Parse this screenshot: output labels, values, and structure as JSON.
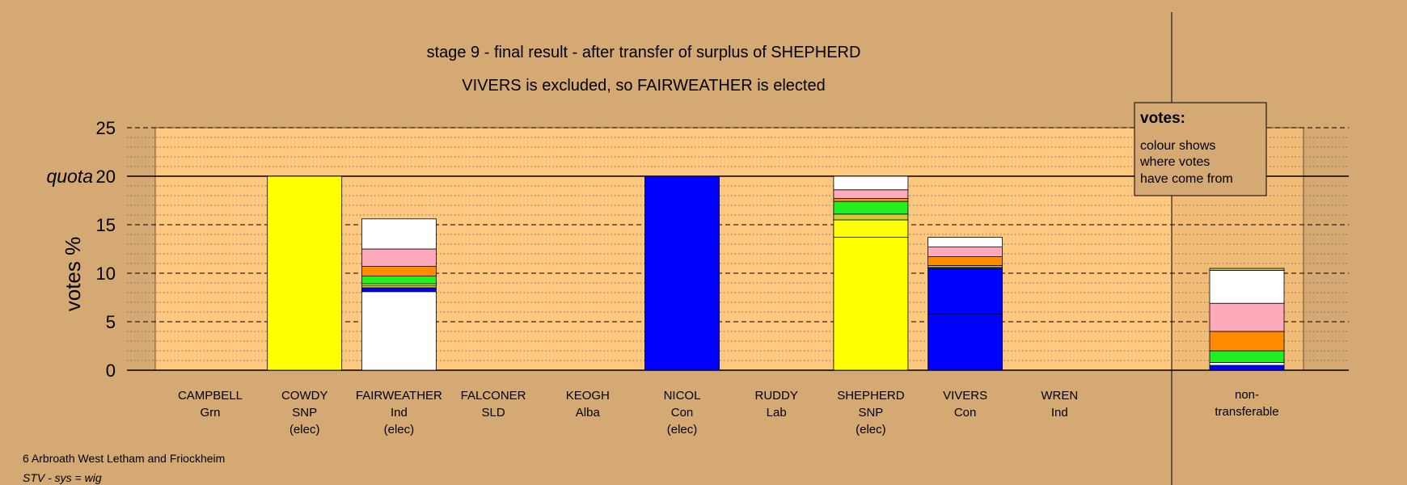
{
  "title_line1": "stage 9 - final result - after transfer of surplus of SHEPHERD",
  "title_line2": "VIVERS is excluded, so FAIRWEATHER is elected",
  "ylabel": "votes %",
  "quota_label": "quota",
  "legend": {
    "heading": "votes:",
    "lines": [
      "colour shows",
      "where votes",
      "have come from"
    ]
  },
  "footer": {
    "ward": "6 Arbroath West Letham and Friockheim",
    "system": "STV - sys = wig"
  },
  "colors": {
    "background": "#D4A974",
    "plot_area": "#FFC880",
    "SNP_yellow": "#FFFF00",
    "Con_blue": "#0000FF",
    "Ind_white": "#FFFFFF",
    "Grn_green": "#22EE22",
    "Lab_pink": "#FFAABB",
    "SLD_orange": "#FF8C00",
    "Alba_olive": "#CCCC33"
  },
  "chart_data": {
    "type": "bar",
    "stacked": true,
    "ylim": [
      0,
      25
    ],
    "yticks": [
      0,
      5,
      10,
      15,
      20,
      25
    ],
    "quota": 20,
    "grid": true,
    "legend_placement": "top-right",
    "categories": [
      {
        "name": "CAMPBELL",
        "party": "Grn",
        "status": ""
      },
      {
        "name": "COWDY",
        "party": "SNP",
        "status": "(elec)"
      },
      {
        "name": "FAIRWEATHER",
        "party": "Ind",
        "status": "(elec)"
      },
      {
        "name": "FALCONER",
        "party": "SLD",
        "status": ""
      },
      {
        "name": "KEOGH",
        "party": "Alba",
        "status": ""
      },
      {
        "name": "NICOL",
        "party": "Con",
        "status": "(elec)"
      },
      {
        "name": "RUDDY",
        "party": "Lab",
        "status": ""
      },
      {
        "name": "SHEPHERD",
        "party": "SNP",
        "status": "(elec)"
      },
      {
        "name": "VIVERS",
        "party": "Con",
        "status": ""
      },
      {
        "name": "WREN",
        "party": "Ind",
        "status": ""
      }
    ],
    "nontransferable_label": [
      "non-",
      "transferable"
    ],
    "stacks": [
      [],
      [
        {
          "color": "#FFFF00",
          "value": 20.0
        }
      ],
      [
        {
          "color": "#FFFFFF",
          "value": 8.1
        },
        {
          "color": "#0000FF",
          "value": 0.4
        },
        {
          "color": "#CCCC33",
          "value": 0.2
        },
        {
          "color": "#FFFF00",
          "value": 0.2
        },
        {
          "color": "#22EE22",
          "value": 0.8
        },
        {
          "color": "#FF8C00",
          "value": 1.0
        },
        {
          "color": "#FFAABB",
          "value": 1.8
        },
        {
          "color": "#FFFFFF",
          "value": 3.1
        }
      ],
      [],
      [],
      [
        {
          "color": "#0000FF",
          "value": 20.0
        }
      ],
      [],
      [
        {
          "color": "#FFFF00",
          "value": 13.7
        },
        {
          "color": "#FFFF00",
          "value": 1.8
        },
        {
          "color": "#CCCC33",
          "value": 0.6
        },
        {
          "color": "#22EE22",
          "value": 1.3
        },
        {
          "color": "#FF8C00",
          "value": 0.3
        },
        {
          "color": "#FFAABB",
          "value": 0.9
        },
        {
          "color": "#FFFFFF",
          "value": 1.4
        }
      ],
      [
        {
          "color": "#0000FF",
          "value": 5.8
        },
        {
          "color": "#0000FF",
          "value": 4.7
        },
        {
          "color": "#22EE22",
          "value": 0.1
        },
        {
          "color": "#CCCC33",
          "value": 0.2
        },
        {
          "color": "#FF8C00",
          "value": 0.9
        },
        {
          "color": "#FFAABB",
          "value": 1.0
        },
        {
          "color": "#FFFFFF",
          "value": 1.0
        }
      ],
      []
    ],
    "nontransferable": [
      {
        "color": "#0000FF",
        "value": 0.5
      },
      {
        "color": "#FFFFFF",
        "value": 0.3
      },
      {
        "color": "#22EE22",
        "value": 1.2
      },
      {
        "color": "#FF8C00",
        "value": 2.0
      },
      {
        "color": "#FFAABB",
        "value": 2.9
      },
      {
        "color": "#FFFFFF",
        "value": 3.4
      },
      {
        "color": "#CCCC33",
        "value": 0.2
      }
    ]
  }
}
